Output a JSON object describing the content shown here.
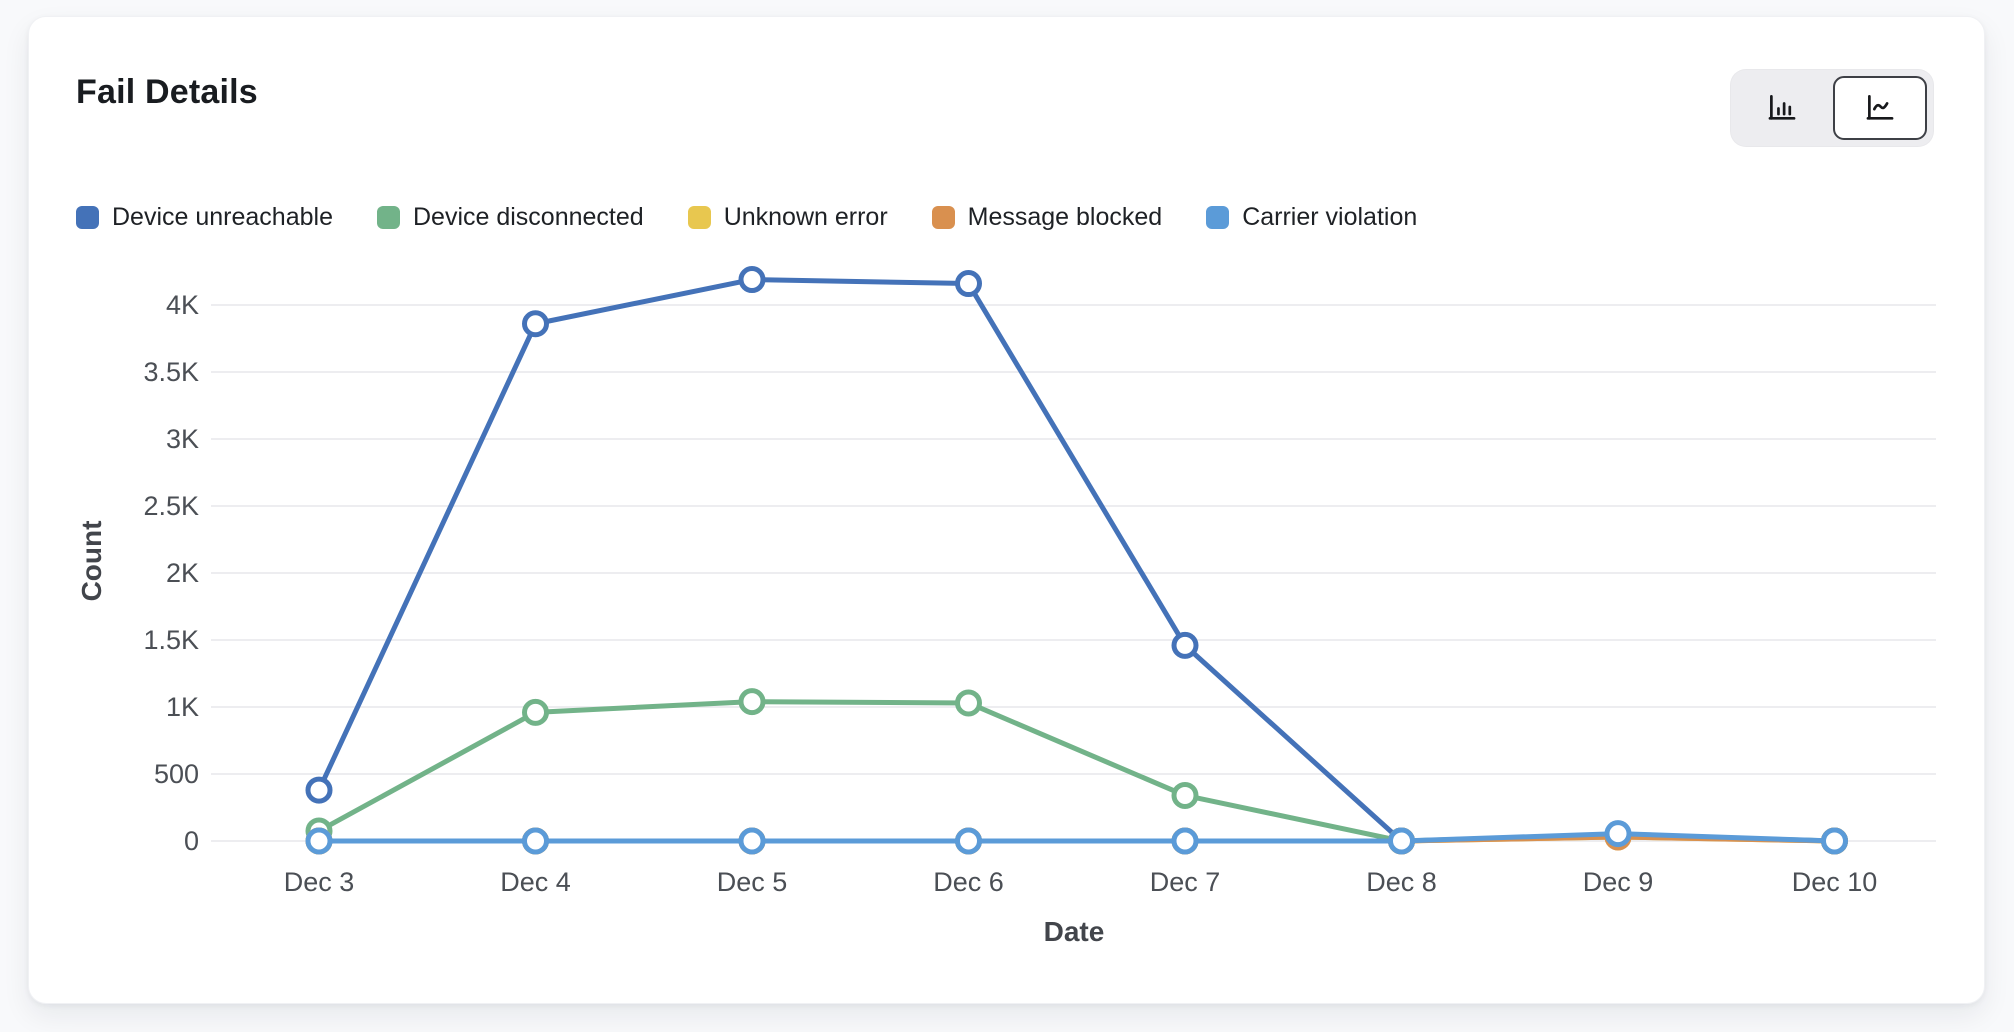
{
  "card": {
    "title": "Fail Details"
  },
  "toolbar": {
    "chart_type_toggle": {
      "options": [
        {
          "name": "bar-chart-view",
          "selected": false
        },
        {
          "name": "line-chart-view",
          "selected": true
        }
      ]
    }
  },
  "chart_data": {
    "type": "line",
    "title": "Fail Details",
    "xlabel": "Date",
    "ylabel": "Count",
    "categories": [
      "Dec 3",
      "Dec 4",
      "Dec 5",
      "Dec 6",
      "Dec 7",
      "Dec 8",
      "Dec 9",
      "Dec 10"
    ],
    "y_ticks": [
      "0",
      "500",
      "1K",
      "1.5K",
      "2K",
      "2.5K",
      "3K",
      "3.5K",
      "4K"
    ],
    "ylim": [
      0,
      4300
    ],
    "grid": true,
    "legend_position": "top",
    "marker": "open-circle",
    "series": [
      {
        "name": "Device unreachable",
        "color": "#4472b8",
        "values": [
          380,
          3860,
          4190,
          4160,
          1460,
          0,
          40,
          0
        ]
      },
      {
        "name": "Device disconnected",
        "color": "#72b389",
        "values": [
          75,
          960,
          1040,
          1030,
          340,
          0,
          45,
          0
        ]
      },
      {
        "name": "Unknown error",
        "color": "#e8c74f",
        "values": [
          0,
          0,
          0,
          0,
          0,
          0,
          30,
          0
        ]
      },
      {
        "name": "Message blocked",
        "color": "#d9904f",
        "values": [
          0,
          0,
          0,
          0,
          0,
          0,
          30,
          0
        ]
      },
      {
        "name": "Carrier violation",
        "color": "#5b9bd8",
        "values": [
          0,
          0,
          0,
          0,
          0,
          0,
          55,
          0
        ]
      }
    ]
  }
}
